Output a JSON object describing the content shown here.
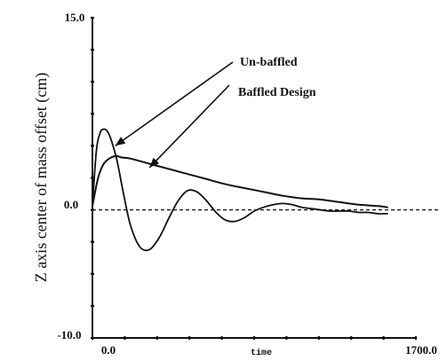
{
  "chart_data": {
    "type": "line",
    "title": "",
    "xlabel": "time",
    "ylabel": "Z axis center of mass offset (cm)",
    "xlim": [
      0,
      1700
    ],
    "ylim": [
      -10,
      15
    ],
    "x_tick_labels": [
      "0.0",
      "1700.0"
    ],
    "y_tick_labels": [
      "15.0",
      "0.0",
      "-10.0"
    ],
    "reference_line": {
      "y": 0,
      "style": "dashed"
    },
    "series": [
      {
        "name": "Un-baffled",
        "x": [
          0,
          20,
          40,
          60,
          80,
          100,
          130,
          160,
          200,
          250,
          300,
          350,
          400,
          450,
          500,
          550,
          600,
          650,
          700,
          750,
          800,
          850,
          900,
          950,
          1000,
          1050,
          1100,
          1150,
          1200,
          1250,
          1300,
          1350,
          1400,
          1450,
          1500,
          1550
        ],
        "values": [
          0.3,
          4.5,
          6.0,
          6.3,
          6.1,
          5.4,
          3.8,
          1.5,
          -1.2,
          -2.9,
          -3.1,
          -2.2,
          -0.7,
          0.7,
          1.5,
          1.4,
          0.7,
          -0.2,
          -0.8,
          -0.9,
          -0.6,
          -0.1,
          0.2,
          0.4,
          0.5,
          0.4,
          0.2,
          0.1,
          0.0,
          -0.1,
          -0.1,
          -0.1,
          -0.2,
          -0.2,
          -0.3,
          -0.3
        ]
      },
      {
        "name": "Baffled Design",
        "x": [
          0,
          30,
          60,
          100,
          130,
          150,
          200,
          300,
          400,
          500,
          600,
          700,
          800,
          900,
          1000,
          1100,
          1200,
          1300,
          1400,
          1500,
          1550
        ],
        "values": [
          0.3,
          2.5,
          3.6,
          4.1,
          4.2,
          4.1,
          4.0,
          3.6,
          3.2,
          2.8,
          2.4,
          2.0,
          1.7,
          1.4,
          1.1,
          0.9,
          0.8,
          0.6,
          0.4,
          0.3,
          0.2
        ]
      }
    ],
    "annotations": [
      {
        "text": "Un-baffled",
        "points_to_series": "Un-baffled",
        "target_x": 120,
        "target_y": 5.0
      },
      {
        "text": "Baffled Design",
        "points_to_series": "Baffled Design",
        "target_x": 300,
        "target_y": 3.3
      }
    ],
    "grid": false,
    "legend": "none"
  },
  "colors": {
    "background": "#ffffff",
    "ink": "#111111"
  }
}
